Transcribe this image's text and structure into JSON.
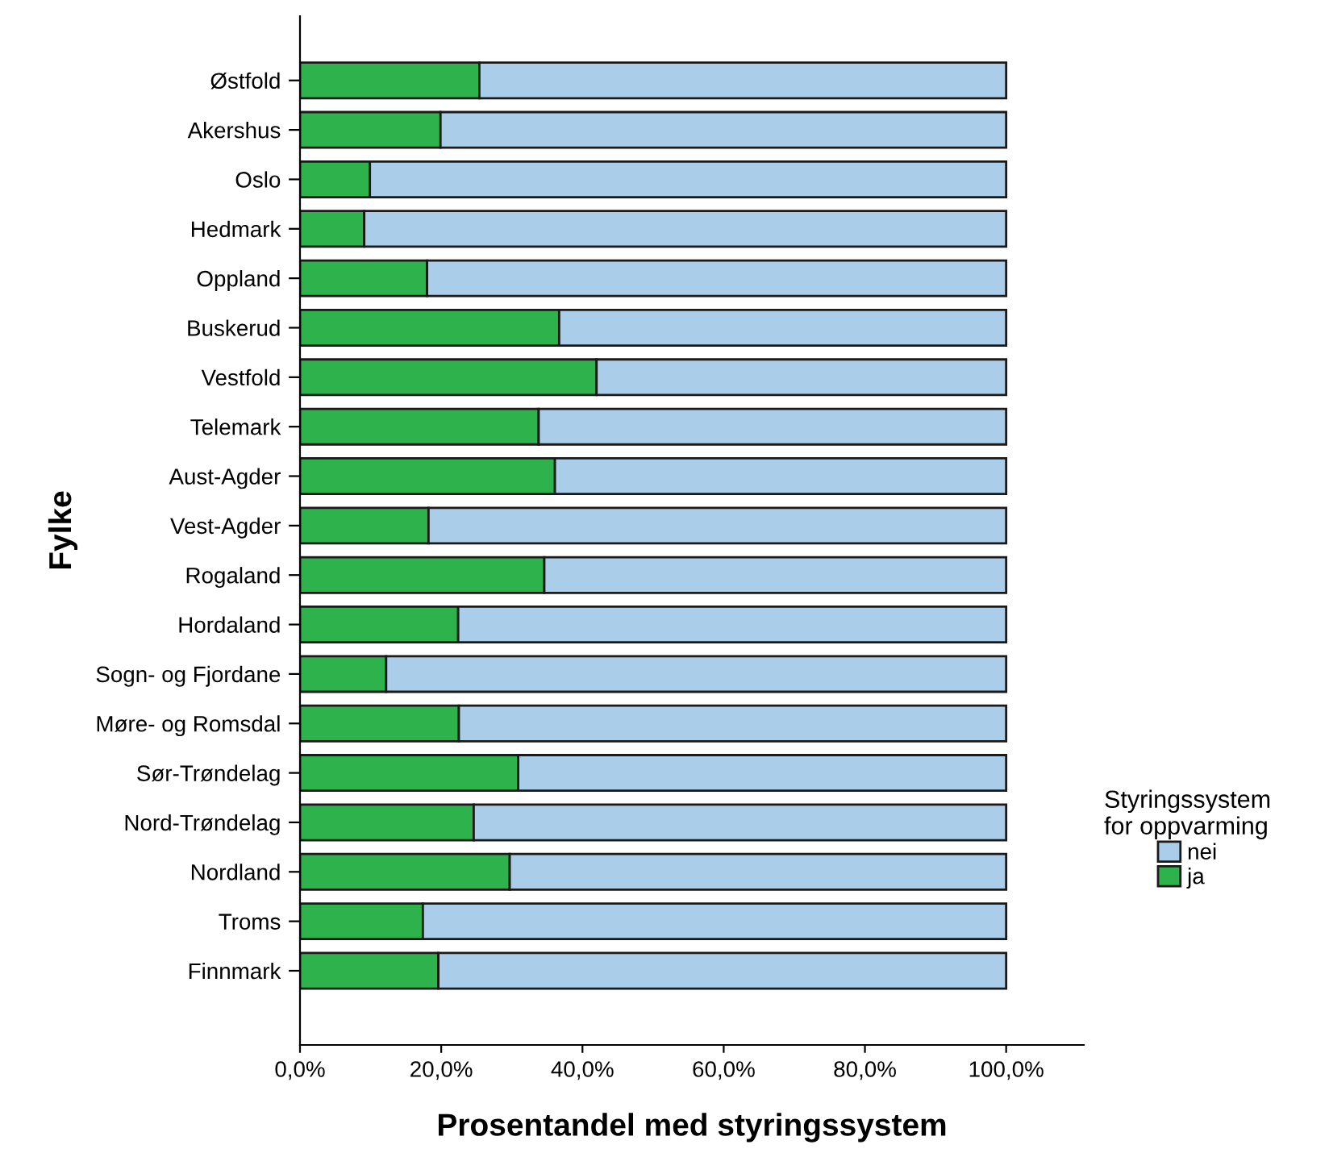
{
  "chart_data": {
    "type": "bar",
    "orientation": "horizontal",
    "stacked": true,
    "xlabel": "Prosentandel med styringssystem",
    "ylabel": "Fylke",
    "legend_title": "Styringssystem\nfor oppvarming",
    "categories": [
      "Østfold",
      "Akershus",
      "Oslo",
      "Hedmark",
      "Oppland",
      "Buskerud",
      "Vestfold",
      "Telemark",
      "Aust-Agder",
      "Vest-Agder",
      "Rogaland",
      "Hordaland",
      "Sogn- og Fjordane",
      "Møre- og Romsdal",
      "Sør-Trøndelag",
      "Nord-Trøndelag",
      "Nordland",
      "Troms",
      "Finnmark"
    ],
    "series": [
      {
        "name": "ja",
        "color": "#2db24c",
        "values": [
          25.4,
          19.9,
          9.9,
          9.1,
          18.0,
          36.7,
          42.0,
          33.8,
          36.1,
          18.2,
          34.6,
          22.4,
          12.2,
          22.5,
          30.9,
          24.6,
          29.7,
          17.4,
          19.6
        ]
      },
      {
        "name": "nei",
        "color": "#aacdea",
        "values": [
          74.6,
          80.1,
          90.1,
          90.9,
          82.0,
          63.3,
          58.0,
          66.2,
          63.9,
          81.8,
          65.4,
          77.6,
          87.8,
          77.5,
          69.1,
          75.4,
          70.3,
          82.6,
          80.4
        ]
      }
    ],
    "xlim": [
      0,
      111
    ],
    "xticks": [
      {
        "value": 0,
        "label": "0,0%"
      },
      {
        "value": 20,
        "label": "20,0%"
      },
      {
        "value": 40,
        "label": "40,0%"
      },
      {
        "value": 60,
        "label": "60,0%"
      },
      {
        "value": 80,
        "label": "80,0%"
      },
      {
        "value": 100,
        "label": "100,0%"
      }
    ],
    "grid": false,
    "legend": "right"
  }
}
